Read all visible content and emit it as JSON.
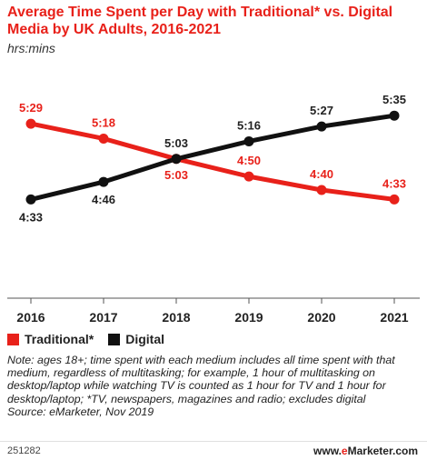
{
  "chart_data": {
    "type": "line",
    "title": "Average Time Spent per Day with Traditional* vs. Digital Media by UK Adults, 2016-2021",
    "subtitle": "hrs:mins",
    "categories": [
      "2016",
      "2017",
      "2018",
      "2019",
      "2020",
      "2021"
    ],
    "series": [
      {
        "name": "Traditional*",
        "color": "#e8211a",
        "values": [
          329,
          318,
          303,
          290,
          280,
          273
        ],
        "labels": [
          "5:29",
          "5:18",
          "5:03",
          "4:50",
          "4:40",
          "4:33"
        ]
      },
      {
        "name": "Digital",
        "color": "#111111",
        "values": [
          273,
          286,
          303,
          316,
          327,
          335
        ],
        "labels": [
          "4:33",
          "4:46",
          "5:03",
          "5:16",
          "5:27",
          "5:35"
        ]
      }
    ],
    "ylim": [
      200,
      360
    ],
    "grid": false,
    "legend": "bottom-left"
  },
  "note": "Note: ages 18+; time spent with each medium includes all time spent with that medium, regardless of multitasking; for example, 1 hour of multitasking on desktop/laptop while watching TV is counted as 1 hour for TV and 1 hour for desktop/laptop; *TV, newspapers, magazines and radio; excludes digital",
  "source": "Source: eMarketer, Nov 2019",
  "chart_id": "251282",
  "brand": {
    "prefix": "www.",
    "e": "e",
    "rest": "Marketer",
    "suffix": ".com"
  }
}
